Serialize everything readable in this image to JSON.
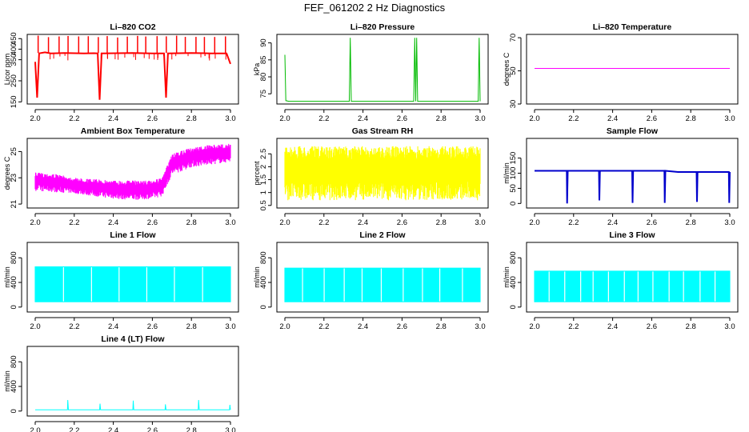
{
  "figure": {
    "title": "FEF_061202  2 Hz Diagnostics"
  },
  "chart_data": [
    {
      "type": "line",
      "title": "Li–820 CO2",
      "ylabel": "Licor ppm",
      "xlim": [
        2.0,
        3.0
      ],
      "ylim": [
        140,
        470
      ],
      "xticks": [
        "2.0",
        "2.2",
        "2.4",
        "2.6",
        "2.8",
        "3.0"
      ],
      "yticks": [
        150,
        250,
        350,
        400,
        450
      ],
      "color": "#ff0000",
      "series": [
        {
          "x": [
            2.0,
            2.01,
            2.02,
            2.05,
            2.08,
            2.15,
            2.25,
            2.3,
            2.32,
            2.33,
            2.34,
            2.5,
            2.6,
            2.66,
            2.67,
            2.68,
            2.8,
            2.9,
            2.98,
            3.0
          ],
          "values": [
            340,
            170,
            380,
            385,
            380,
            382,
            380,
            381,
            380,
            160,
            380,
            382,
            380,
            380,
            170,
            380,
            382,
            380,
            380,
            330
          ]
        }
      ]
    },
    {
      "type": "line",
      "title": "Li–820 Pressure",
      "ylabel": "kPa",
      "xlim": [
        2.0,
        3.0
      ],
      "ylim": [
        72,
        92.5
      ],
      "xticks": [
        "2.0",
        "2.2",
        "2.4",
        "2.6",
        "2.8",
        "3.0"
      ],
      "yticks": [
        75,
        80,
        85,
        90
      ],
      "color": "#00bb00",
      "series": [
        {
          "x": [
            2.0,
            2.005,
            2.02,
            2.33,
            2.335,
            2.34,
            2.66,
            2.665,
            2.67,
            2.675,
            2.68,
            2.99,
            2.995,
            3.0
          ],
          "values": [
            86.5,
            73,
            72.8,
            72.8,
            91.5,
            72.8,
            72.8,
            91.5,
            72.8,
            91.5,
            72.8,
            72.8,
            91.5,
            72.8
          ]
        }
      ]
    },
    {
      "type": "line",
      "title": "Li–820 Temperature",
      "ylabel": "degrees C",
      "xlim": [
        2.0,
        3.0
      ],
      "ylim": [
        30,
        72
      ],
      "xticks": [
        "2.0",
        "2.2",
        "2.4",
        "2.6",
        "2.8",
        "3.0"
      ],
      "yticks": [
        30,
        50,
        70
      ],
      "color": "#ff00ff",
      "series": [
        {
          "x": [
            2.0,
            3.0
          ],
          "values": [
            51.5,
            51.5
          ]
        }
      ]
    },
    {
      "type": "line",
      "title": "Ambient Box Temperature",
      "ylabel": "degrees C",
      "xlim": [
        2.0,
        3.0
      ],
      "ylim": [
        20.7,
        26.0
      ],
      "xticks": [
        "2.0",
        "2.2",
        "2.4",
        "2.6",
        "2.8",
        "3.0"
      ],
      "yticks": [
        21,
        23,
        25
      ],
      "color": "#ff00ff",
      "series": [
        {
          "name": "upper",
          "x": [
            2.0,
            2.1,
            2.2,
            2.3,
            2.4,
            2.5,
            2.6,
            2.65,
            2.7,
            2.8,
            2.9,
            3.0
          ],
          "values": [
            23.4,
            23.3,
            23.0,
            22.9,
            22.8,
            22.8,
            22.8,
            23.0,
            24.8,
            25.3,
            25.5,
            25.6
          ]
        },
        {
          "name": "lower",
          "x": [
            2.0,
            2.1,
            2.2,
            2.3,
            2.4,
            2.5,
            2.6,
            2.65,
            2.7,
            2.8,
            2.9,
            3.0
          ],
          "values": [
            22.0,
            21.9,
            21.8,
            21.6,
            21.4,
            21.3,
            21.4,
            21.6,
            23.2,
            23.8,
            24.0,
            24.2
          ]
        }
      ]
    },
    {
      "type": "line",
      "title": "Gas Stream RH",
      "ylabel": "percent",
      "xlim": [
        2.0,
        3.0
      ],
      "ylim": [
        0.4,
        3.1
      ],
      "xticks": [
        "2.0",
        "2.2",
        "2.4",
        "2.6",
        "2.8",
        "3.0"
      ],
      "yticks": [
        0.5,
        1.0,
        1.5,
        2.0,
        2.5
      ],
      "color": "#ffff00",
      "series": [
        {
          "name": "upper",
          "x": [
            2.0,
            3.0
          ],
          "values": [
            2.8,
            2.8
          ]
        },
        {
          "name": "lower",
          "x": [
            2.0,
            3.0
          ],
          "values": [
            0.7,
            0.7
          ]
        }
      ]
    },
    {
      "type": "line",
      "title": "Sample Flow",
      "ylabel": "ml/min",
      "xlim": [
        2.0,
        3.0
      ],
      "ylim": [
        -15,
        215
      ],
      "xticks": [
        "2.0",
        "2.2",
        "2.4",
        "2.6",
        "2.8",
        "3.0"
      ],
      "yticks": [
        0,
        50,
        100,
        150
      ],
      "color": "#0000cc",
      "series": [
        {
          "x": [
            2.0,
            2.165,
            2.167,
            2.17,
            2.33,
            2.332,
            2.335,
            2.5,
            2.502,
            2.505,
            2.665,
            2.667,
            2.67,
            2.735,
            2.83,
            2.832,
            2.835,
            2.995,
            2.997,
            3.0
          ],
          "values": [
            108,
            108,
            0,
            108,
            108,
            10,
            108,
            108,
            2,
            108,
            108,
            2,
            108,
            104,
            104,
            5,
            104,
            104,
            2,
            104
          ]
        }
      ]
    },
    {
      "type": "area",
      "title": "Line 1 Flow",
      "ylabel": "ml/min",
      "xlim": [
        2.0,
        3.0
      ],
      "ylim": [
        -80,
        1050
      ],
      "xticks": [
        "2.0",
        "2.2",
        "2.4",
        "2.6",
        "2.8",
        "3.0"
      ],
      "yticks": [
        0,
        400,
        800
      ],
      "color": "#00ffff",
      "series": [
        {
          "name": "upper",
          "x": [
            2.0,
            3.0
          ],
          "values": [
            660,
            660
          ]
        },
        {
          "name": "lower",
          "x": [
            2.0,
            3.0
          ],
          "values": [
            80,
            80
          ]
        }
      ]
    },
    {
      "type": "area",
      "title": "Line 2 Flow",
      "ylabel": "ml/min",
      "xlim": [
        2.0,
        3.0
      ],
      "ylim": [
        -80,
        1050
      ],
      "xticks": [
        "2.0",
        "2.2",
        "2.4",
        "2.6",
        "2.8",
        "3.0"
      ],
      "yticks": [
        0,
        400,
        800
      ],
      "color": "#00ffff",
      "series": [
        {
          "name": "upper",
          "x": [
            2.0,
            3.0
          ],
          "values": [
            640,
            640
          ]
        },
        {
          "name": "lower",
          "x": [
            2.0,
            3.0
          ],
          "values": [
            80,
            80
          ]
        }
      ]
    },
    {
      "type": "area",
      "title": "Line 3 Flow",
      "ylabel": "ml/min",
      "xlim": [
        2.0,
        3.0
      ],
      "ylim": [
        -80,
        1050
      ],
      "xticks": [
        "2.0",
        "2.2",
        "2.4",
        "2.6",
        "2.8",
        "3.0"
      ],
      "yticks": [
        0,
        400,
        800
      ],
      "color": "#00ffff",
      "series": [
        {
          "name": "upper",
          "x": [
            2.0,
            3.0
          ],
          "values": [
            590,
            590
          ]
        },
        {
          "name": "lower",
          "x": [
            2.0,
            3.0
          ],
          "values": [
            80,
            80
          ]
        }
      ]
    },
    {
      "type": "line",
      "title": "Line 4 (LT) Flow",
      "ylabel": "ml/min",
      "xlim": [
        2.0,
        3.0
      ],
      "ylim": [
        -80,
        1050
      ],
      "xticks": [
        "2.0",
        "2.2",
        "2.4",
        "2.6",
        "2.8",
        "3.0"
      ],
      "yticks": [
        0,
        400,
        800
      ],
      "color": "#00ffff",
      "series": [
        {
          "x": [
            2.0,
            2.165,
            2.167,
            2.17,
            2.33,
            2.332,
            2.335,
            2.5,
            2.502,
            2.505,
            2.665,
            2.667,
            2.67,
            2.835,
            2.837,
            2.84,
            2.995,
            2.997,
            3.0
          ],
          "values": [
            20,
            20,
            180,
            20,
            20,
            120,
            20,
            20,
            170,
            20,
            20,
            110,
            20,
            20,
            180,
            20,
            20,
            100,
            20
          ]
        }
      ]
    }
  ]
}
